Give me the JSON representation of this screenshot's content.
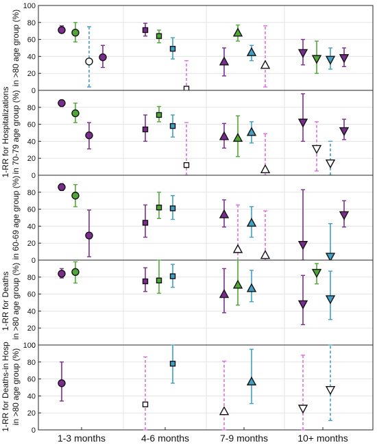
{
  "figure": {
    "y_labels": [
      "1-RR for Hospitalizations",
      "in >80 age group (%)",
      "in 70-79 age group (%)",
      "in 60-69 age group (%)",
      "1-RR for Deaths",
      "in >80 age group (%)",
      "1-RR for Deaths-in Hosp",
      "in >80 age group (%)"
    ],
    "x_tick_labels": [
      "1-3 months",
      "4-6 months",
      "7-9 months",
      "10+ months"
    ]
  },
  "colors": {
    "purple": "#7B2D8E",
    "green": "#4FA836",
    "blue": "#3F9FC4",
    "white": "#FFFFFF",
    "magenta_band": "#E070E0"
  },
  "chart_data": [
    {
      "type": "scatter",
      "panel": "hospitalizations >80",
      "ylim": [
        0,
        100
      ],
      "yticks": [
        0,
        20,
        40,
        60,
        80,
        100
      ],
      "grid": true,
      "points": [
        {
          "period": "1-3 months",
          "slot": 0,
          "marker": "circle",
          "color": "purple",
          "y": 71,
          "lo": 68,
          "hi": 76,
          "dashed": false
        },
        {
          "period": "1-3 months",
          "slot": 1,
          "marker": "circle",
          "color": "green",
          "y": 68,
          "lo": 57,
          "hi": 80,
          "dashed": false
        },
        {
          "period": "1-3 months",
          "slot": 2,
          "marker": "circle",
          "color": "white",
          "y": 34,
          "lo": 4,
          "hi": 75,
          "dashed": true
        },
        {
          "period": "1-3 months",
          "slot": 3,
          "marker": "circle",
          "color": "purple",
          "y": 39,
          "lo": 27,
          "hi": 53,
          "dashed": false
        },
        {
          "period": "4-6 months",
          "slot": 0,
          "marker": "square",
          "color": "purple",
          "y": 71,
          "lo": 64,
          "hi": 79,
          "dashed": false
        },
        {
          "period": "4-6 months",
          "slot": 1,
          "marker": "square",
          "color": "green",
          "y": 64,
          "lo": 56,
          "hi": 71,
          "dashed": false
        },
        {
          "period": "4-6 months",
          "slot": 2,
          "marker": "square",
          "color": "blue",
          "y": 49,
          "lo": 37,
          "hi": 62,
          "dashed": false
        },
        {
          "period": "4-6 months",
          "slot": 3,
          "marker": "square",
          "color": "white",
          "y": 2,
          "lo": 0,
          "hi": 35,
          "dashed": true
        },
        {
          "period": "7-9 months",
          "slot": 0,
          "marker": "triangle-up",
          "color": "purple",
          "y": 34,
          "lo": 17,
          "hi": 50,
          "dashed": false
        },
        {
          "period": "7-9 months",
          "slot": 1,
          "marker": "triangle-up",
          "color": "green",
          "y": 68,
          "lo": 58,
          "hi": 77,
          "dashed": false
        },
        {
          "period": "7-9 months",
          "slot": 2,
          "marker": "triangle-up",
          "color": "blue",
          "y": 45,
          "lo": 35,
          "hi": 53,
          "dashed": false
        },
        {
          "period": "7-9 months",
          "slot": 3,
          "marker": "triangle-up",
          "color": "white",
          "y": 30,
          "lo": 4,
          "hi": 76,
          "dashed": true
        },
        {
          "period": "10+ months",
          "slot": 0,
          "marker": "triangle-down",
          "color": "purple",
          "y": 44,
          "lo": 30,
          "hi": 60,
          "dashed": false
        },
        {
          "period": "10+ months",
          "slot": 1,
          "marker": "triangle-down",
          "color": "green",
          "y": 37,
          "lo": 20,
          "hi": 58,
          "dashed": false
        },
        {
          "period": "10+ months",
          "slot": 2,
          "marker": "triangle-down",
          "color": "blue",
          "y": 36,
          "lo": 25,
          "hi": 50,
          "dashed": false
        },
        {
          "period": "10+ months",
          "slot": 3,
          "marker": "triangle-down",
          "color": "purple",
          "y": 38,
          "lo": 28,
          "hi": 50,
          "dashed": false
        }
      ]
    },
    {
      "type": "scatter",
      "panel": "hospitalizations 70-79",
      "ylim": [
        0,
        100
      ],
      "yticks": [
        0,
        20,
        40,
        60,
        80
      ],
      "grid": true,
      "points": [
        {
          "period": "1-3 months",
          "slot": 0,
          "marker": "circle",
          "color": "purple",
          "y": 85,
          "lo": 81,
          "hi": 88,
          "dashed": false
        },
        {
          "period": "1-3 months",
          "slot": 1,
          "marker": "circle",
          "color": "green",
          "y": 73,
          "lo": 62,
          "hi": 85,
          "dashed": false
        },
        {
          "period": "1-3 months",
          "slot": 2,
          "marker": "circle",
          "color": "purple",
          "y": 47,
          "lo": 31,
          "hi": 62,
          "dashed": false
        },
        {
          "period": "4-6 months",
          "slot": 0,
          "marker": "square",
          "color": "purple",
          "y": 54,
          "lo": 40,
          "hi": 71,
          "dashed": false
        },
        {
          "period": "4-6 months",
          "slot": 1,
          "marker": "square",
          "color": "green",
          "y": 71,
          "lo": 63,
          "hi": 81,
          "dashed": false
        },
        {
          "period": "4-6 months",
          "slot": 2,
          "marker": "square",
          "color": "blue",
          "y": 58,
          "lo": 45,
          "hi": 71,
          "dashed": false
        },
        {
          "period": "4-6 months",
          "slot": 3,
          "marker": "square",
          "color": "white",
          "y": 12,
          "lo": 0,
          "hi": 62,
          "dashed": true
        },
        {
          "period": "7-9 months",
          "slot": 0,
          "marker": "triangle-up",
          "color": "purple",
          "y": 46,
          "lo": 32,
          "hi": 61,
          "dashed": false
        },
        {
          "period": "7-9 months",
          "slot": 1,
          "marker": "triangle-up",
          "color": "green",
          "y": 44,
          "lo": 22,
          "hi": 70,
          "dashed": false
        },
        {
          "period": "7-9 months",
          "slot": 2,
          "marker": "triangle-up",
          "color": "blue",
          "y": 51,
          "lo": 38,
          "hi": 63,
          "dashed": false
        },
        {
          "period": "7-9 months",
          "slot": 3,
          "marker": "triangle-up",
          "color": "white",
          "y": 7,
          "lo": 0,
          "hi": 49,
          "dashed": true
        },
        {
          "period": "10+ months",
          "slot": 0,
          "marker": "triangle-down",
          "color": "purple",
          "y": 62,
          "lo": 40,
          "hi": 96,
          "dashed": false
        },
        {
          "period": "10+ months",
          "slot": 1,
          "marker": "triangle-down",
          "color": "white",
          "y": 31,
          "lo": 5,
          "hi": 63,
          "dashed": true
        },
        {
          "period": "10+ months",
          "slot": 2,
          "marker": "triangle-down",
          "color": "white",
          "y": 14,
          "lo": 0,
          "hi": 40,
          "dashed": true
        },
        {
          "period": "10+ months",
          "slot": 3,
          "marker": "triangle-down",
          "color": "purple",
          "y": 52,
          "lo": 42,
          "hi": 66,
          "dashed": false
        }
      ]
    },
    {
      "type": "scatter",
      "panel": "hospitalizations 60-69",
      "ylim": [
        0,
        100
      ],
      "yticks": [
        0,
        20,
        40,
        60,
        80
      ],
      "grid": true,
      "points": [
        {
          "period": "1-3 months",
          "slot": 0,
          "marker": "circle",
          "color": "purple",
          "y": 86,
          "lo": 82,
          "hi": 90,
          "dashed": false
        },
        {
          "period": "1-3 months",
          "slot": 1,
          "marker": "circle",
          "color": "green",
          "y": 76,
          "lo": 63,
          "hi": 89,
          "dashed": false
        },
        {
          "period": "1-3 months",
          "slot": 2,
          "marker": "circle",
          "color": "purple",
          "y": 29,
          "lo": 4,
          "hi": 59,
          "dashed": false
        },
        {
          "period": "4-6 months",
          "slot": 0,
          "marker": "square",
          "color": "purple",
          "y": 44,
          "lo": 27,
          "hi": 65,
          "dashed": false
        },
        {
          "period": "4-6 months",
          "slot": 1,
          "marker": "square",
          "color": "green",
          "y": 62,
          "lo": 49,
          "hi": 80,
          "dashed": false
        },
        {
          "period": "4-6 months",
          "slot": 2,
          "marker": "square",
          "color": "blue",
          "y": 61,
          "lo": 48,
          "hi": 76,
          "dashed": false
        },
        {
          "period": "7-9 months",
          "slot": 0,
          "marker": "triangle-up",
          "color": "purple",
          "y": 54,
          "lo": 39,
          "hi": 71,
          "dashed": false
        },
        {
          "period": "7-9 months",
          "slot": 1,
          "marker": "triangle-up",
          "color": "white",
          "y": 13,
          "lo": 0,
          "hi": 65,
          "dashed": true
        },
        {
          "period": "7-9 months",
          "slot": 2,
          "marker": "triangle-up",
          "color": "blue",
          "y": 44,
          "lo": 27,
          "hi": 63,
          "dashed": false
        },
        {
          "period": "7-9 months",
          "slot": 3,
          "marker": "triangle-up",
          "color": "white",
          "y": 6,
          "lo": 0,
          "hi": 58,
          "dashed": true
        },
        {
          "period": "10+ months",
          "slot": 0,
          "marker": "triangle-down",
          "color": "purple",
          "y": 18,
          "lo": 0,
          "hi": 83,
          "dashed": false
        },
        {
          "period": "10+ months",
          "slot": 2,
          "marker": "triangle-down",
          "color": "blue",
          "y": 4,
          "lo": 0,
          "hi": 43,
          "dashed": false
        },
        {
          "period": "10+ months",
          "slot": 3,
          "marker": "triangle-down",
          "color": "purple",
          "y": 53,
          "lo": 39,
          "hi": 70,
          "dashed": false
        }
      ]
    },
    {
      "type": "scatter",
      "panel": "deaths >80",
      "ylim": [
        0,
        100
      ],
      "yticks": [
        0,
        20,
        40,
        60,
        80
      ],
      "grid": true,
      "points": [
        {
          "period": "1-3 months",
          "slot": 0,
          "marker": "circle",
          "color": "purple",
          "y": 84,
          "lo": 79,
          "hi": 90,
          "dashed": false
        },
        {
          "period": "1-3 months",
          "slot": 1,
          "marker": "circle",
          "color": "green",
          "y": 86,
          "lo": 73,
          "hi": 98,
          "dashed": false
        },
        {
          "period": "4-6 months",
          "slot": 0,
          "marker": "square",
          "color": "purple",
          "y": 75,
          "lo": 63,
          "hi": 91,
          "dashed": false
        },
        {
          "period": "4-6 months",
          "slot": 1,
          "marker": "square",
          "color": "green",
          "y": 76,
          "lo": 61,
          "hi": 100,
          "dashed": false
        },
        {
          "period": "4-6 months",
          "slot": 2,
          "marker": "square",
          "color": "blue",
          "y": 81,
          "lo": 68,
          "hi": 95,
          "dashed": false
        },
        {
          "period": "7-9 months",
          "slot": 0,
          "marker": "triangle-up",
          "color": "purple",
          "y": 60,
          "lo": 38,
          "hi": 90,
          "dashed": false
        },
        {
          "period": "7-9 months",
          "slot": 1,
          "marker": "triangle-up",
          "color": "green",
          "y": 71,
          "lo": 47,
          "hi": 100,
          "dashed": false
        },
        {
          "period": "7-9 months",
          "slot": 2,
          "marker": "triangle-up",
          "color": "blue",
          "y": 67,
          "lo": 51,
          "hi": 88,
          "dashed": false
        },
        {
          "period": "10+ months",
          "slot": 0,
          "marker": "triangle-down",
          "color": "purple",
          "y": 48,
          "lo": 24,
          "hi": 82,
          "dashed": false
        },
        {
          "period": "10+ months",
          "slot": 1,
          "marker": "triangle-down",
          "color": "green",
          "y": 85,
          "lo": 72,
          "hi": 96,
          "dashed": false
        },
        {
          "period": "10+ months",
          "slot": 2,
          "marker": "triangle-down",
          "color": "blue",
          "y": 54,
          "lo": 30,
          "hi": 87,
          "dashed": false
        }
      ]
    },
    {
      "type": "scatter",
      "panel": "deaths in hospital >80",
      "ylim": [
        0,
        100
      ],
      "yticks": [
        0,
        20,
        40,
        60,
        80,
        100
      ],
      "grid": true,
      "points": [
        {
          "period": "1-3 months",
          "slot": 0,
          "marker": "circle",
          "color": "purple",
          "y": 55,
          "lo": 34,
          "hi": 80,
          "dashed": false
        },
        {
          "period": "4-6 months",
          "slot": 0,
          "marker": "square",
          "color": "white",
          "y": 30,
          "lo": 0,
          "hi": 86,
          "dashed": true
        },
        {
          "period": "4-6 months",
          "slot": 2,
          "marker": "square",
          "color": "blue",
          "y": 78,
          "lo": 55,
          "hi": 100,
          "dashed": false
        },
        {
          "period": "7-9 months",
          "slot": 0,
          "marker": "triangle-up",
          "color": "white",
          "y": 22,
          "lo": 0,
          "hi": 81,
          "dashed": true
        },
        {
          "period": "7-9 months",
          "slot": 2,
          "marker": "triangle-up",
          "color": "blue",
          "y": 57,
          "lo": 31,
          "hi": 95,
          "dashed": false
        },
        {
          "period": "10+ months",
          "slot": 0,
          "marker": "triangle-down",
          "color": "white",
          "y": 25,
          "lo": 0,
          "hi": 88,
          "dashed": true
        },
        {
          "period": "10+ months",
          "slot": 2,
          "marker": "triangle-down",
          "color": "white",
          "y": 47,
          "lo": 11,
          "hi": 100,
          "dashed": true
        }
      ]
    }
  ]
}
